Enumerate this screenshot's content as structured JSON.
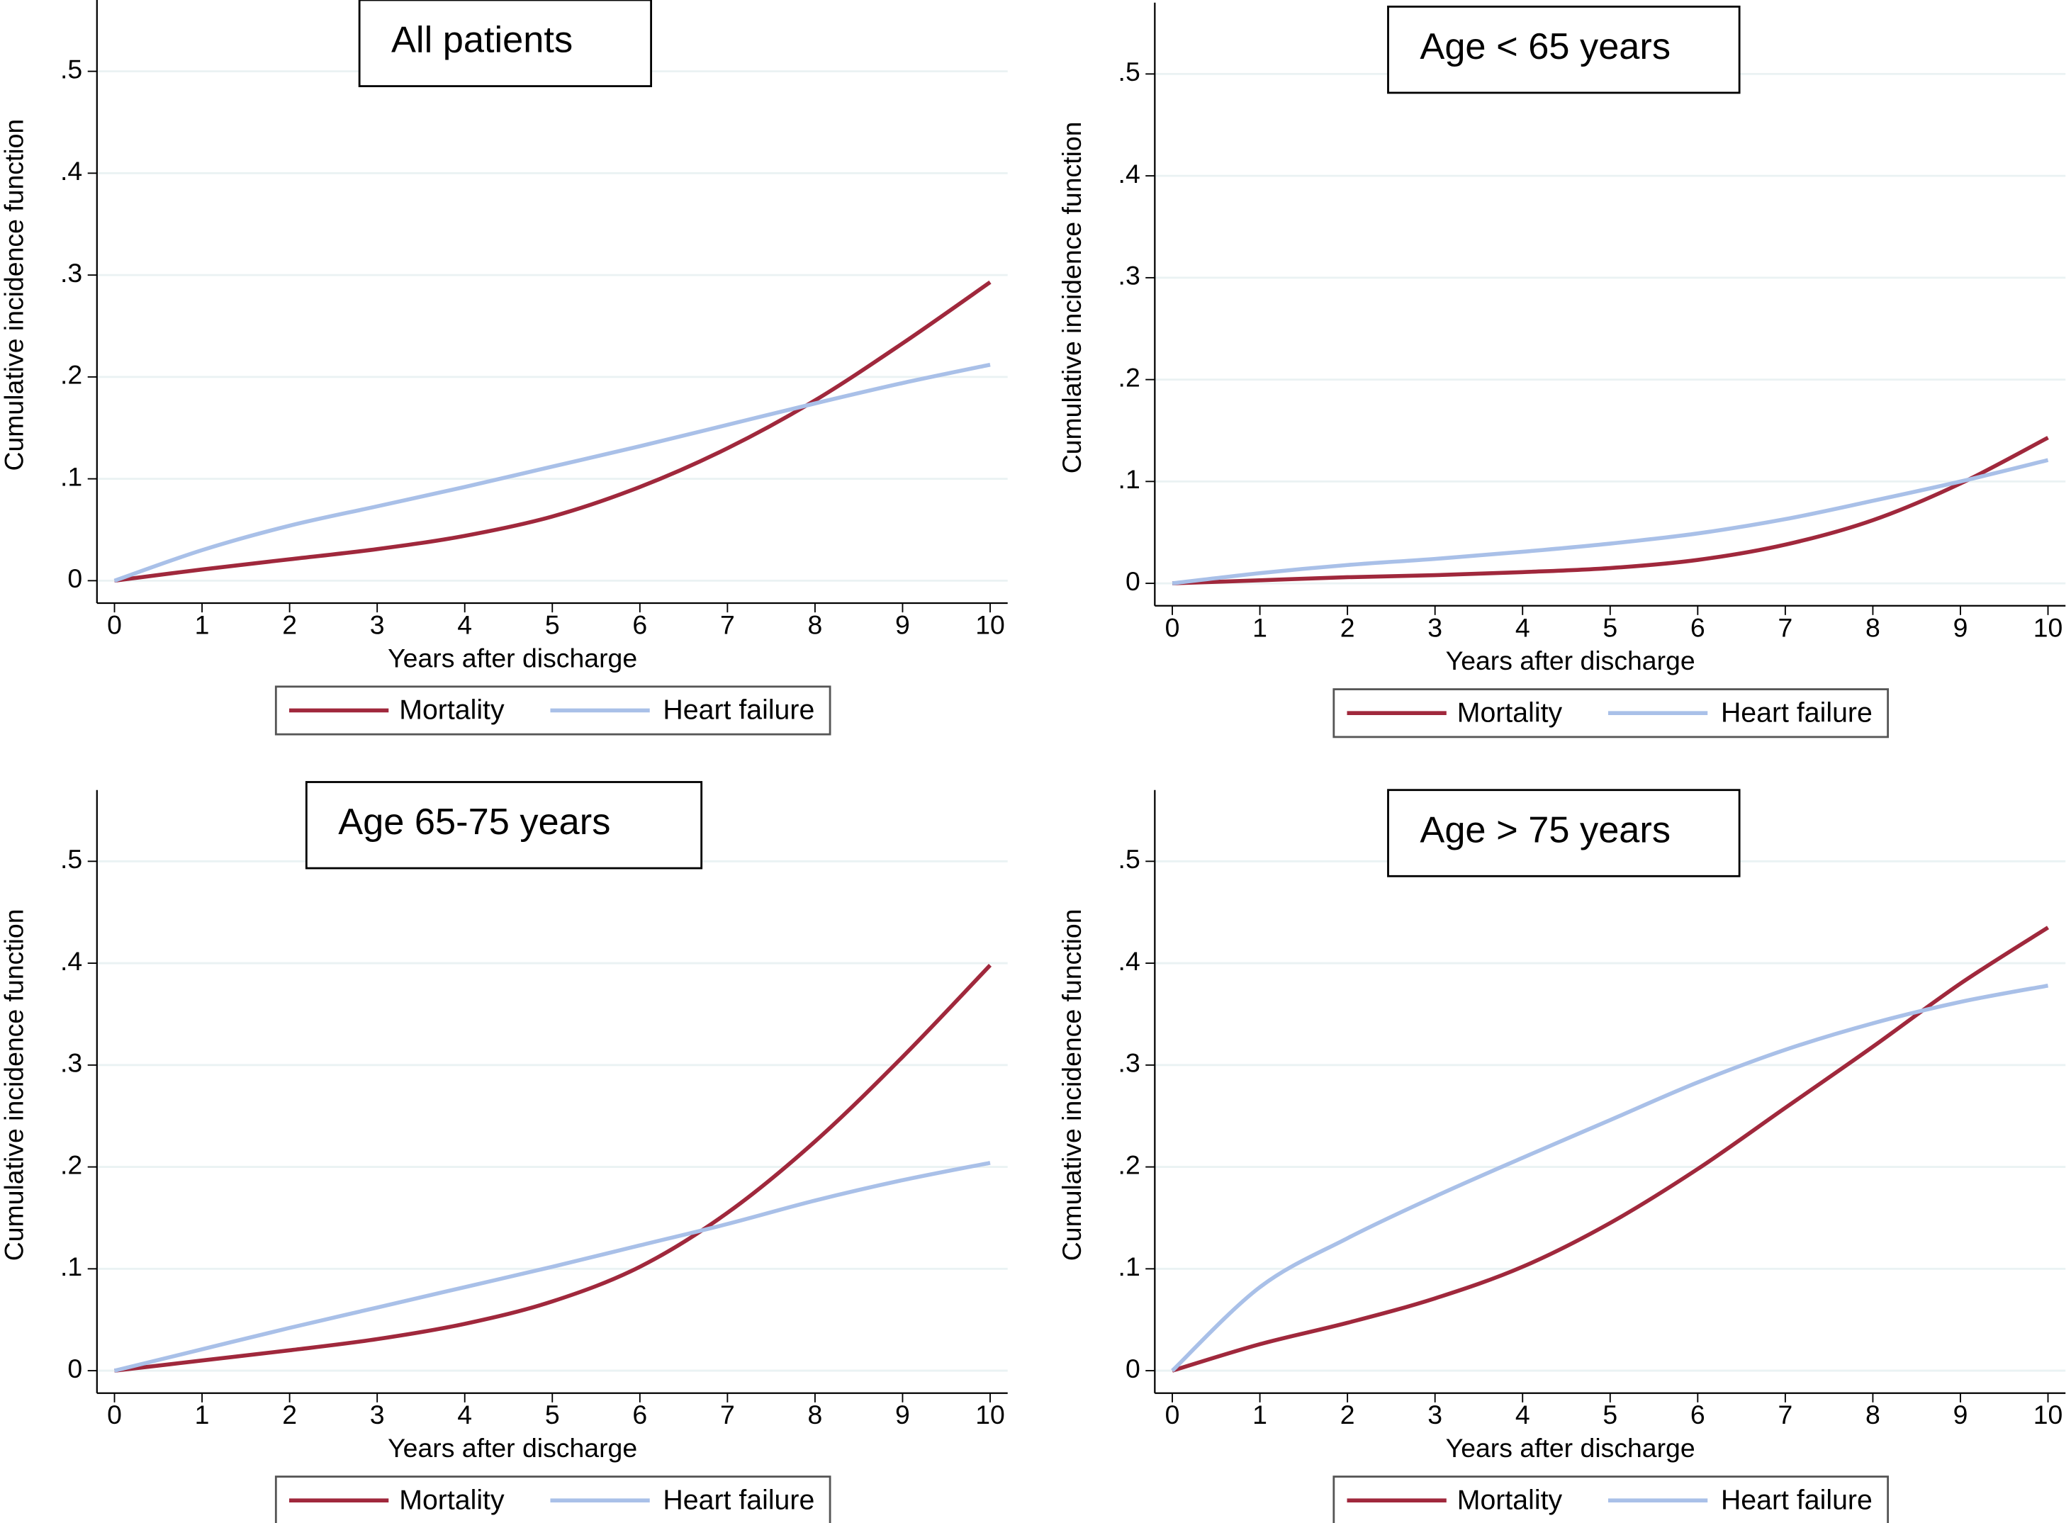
{
  "chart_data": [
    {
      "type": "line",
      "title": "All patients",
      "xlabel": "Years after discharge",
      "ylabel": "Cumulative incidence function",
      "x": [
        0,
        1,
        2,
        3,
        4,
        5,
        6,
        7,
        8,
        9,
        10
      ],
      "series": [
        {
          "name": "Mortality",
          "color": "#a0283c",
          "values": [
            0,
            0.011,
            0.021,
            0.031,
            0.044,
            0.063,
            0.092,
            0.13,
            0.177,
            0.233,
            0.293
          ]
        },
        {
          "name": "Heart failure",
          "color": "#a9c0e8",
          "values": [
            0,
            0.03,
            0.054,
            0.073,
            0.092,
            0.112,
            0.132,
            0.153,
            0.174,
            0.194,
            0.212
          ]
        }
      ],
      "xlim": [
        -0.2,
        10.2
      ],
      "ylim": [
        -0.022,
        0.57
      ],
      "xticks": [
        0,
        1,
        2,
        3,
        4,
        5,
        6,
        7,
        8,
        9,
        10
      ],
      "yticks": [
        0,
        {
          "value": 0.1,
          "label": ".1"
        },
        {
          "value": 0.2,
          "label": ".2"
        },
        {
          "value": 0.3,
          "label": ".3"
        },
        {
          "value": 0.4,
          "label": ".4"
        },
        {
          "value": 0.5,
          "label": ".5"
        }
      ],
      "grid": true,
      "legend": "bottom"
    },
    {
      "type": "line",
      "title": "Age < 65 years",
      "xlabel": "Years after discharge",
      "ylabel": "Cumulative incidence function",
      "x": [
        0,
        1,
        2,
        3,
        4,
        5,
        6,
        7,
        8,
        9,
        10
      ],
      "series": [
        {
          "name": "Mortality",
          "color": "#a0283c",
          "values": [
            0,
            0.003,
            0.006,
            0.008,
            0.011,
            0.015,
            0.023,
            0.038,
            0.062,
            0.098,
            0.143
          ]
        },
        {
          "name": "Heart failure",
          "color": "#a9c0e8",
          "values": [
            0,
            0.01,
            0.018,
            0.024,
            0.031,
            0.039,
            0.049,
            0.063,
            0.081,
            0.1,
            0.121
          ]
        }
      ],
      "xlim": [
        -0.2,
        10.2
      ],
      "ylim": [
        -0.022,
        0.57
      ],
      "xticks": [
        0,
        1,
        2,
        3,
        4,
        5,
        6,
        7,
        8,
        9,
        10
      ],
      "yticks": [
        0,
        {
          "value": 0.1,
          "label": ".1"
        },
        {
          "value": 0.2,
          "label": ".2"
        },
        {
          "value": 0.3,
          "label": ".3"
        },
        {
          "value": 0.4,
          "label": ".4"
        },
        {
          "value": 0.5,
          "label": ".5"
        }
      ],
      "grid": true,
      "legend": "bottom"
    },
    {
      "type": "line",
      "title": "Age 65-75 years",
      "xlabel": "Years after discharge",
      "ylabel": "Cumulative incidence function",
      "x": [
        0,
        1,
        2,
        3,
        4,
        5,
        6,
        7,
        8,
        9,
        10
      ],
      "series": [
        {
          "name": "Mortality",
          "color": "#a0283c",
          "values": [
            0,
            0.01,
            0.02,
            0.031,
            0.046,
            0.068,
            0.102,
            0.155,
            0.225,
            0.308,
            0.398
          ]
        },
        {
          "name": "Heart failure",
          "color": "#a9c0e8",
          "values": [
            0,
            0.021,
            0.042,
            0.062,
            0.082,
            0.102,
            0.123,
            0.144,
            0.167,
            0.187,
            0.204
          ]
        }
      ],
      "xlim": [
        -0.2,
        10.2
      ],
      "ylim": [
        -0.022,
        0.57
      ],
      "xticks": [
        0,
        1,
        2,
        3,
        4,
        5,
        6,
        7,
        8,
        9,
        10
      ],
      "yticks": [
        0,
        {
          "value": 0.1,
          "label": ".1"
        },
        {
          "value": 0.2,
          "label": ".2"
        },
        {
          "value": 0.3,
          "label": ".3"
        },
        {
          "value": 0.4,
          "label": ".4"
        },
        {
          "value": 0.5,
          "label": ".5"
        }
      ],
      "grid": true,
      "legend": "bottom"
    },
    {
      "type": "line",
      "title": "Age > 75 years",
      "xlabel": "Years after discharge",
      "ylabel": "Cumulative incidence function",
      "x": [
        0,
        1,
        2,
        3,
        4,
        5,
        6,
        7,
        8,
        9,
        10
      ],
      "series": [
        {
          "name": "Mortality",
          "color": "#a0283c",
          "values": [
            0,
            0.026,
            0.047,
            0.071,
            0.102,
            0.145,
            0.198,
            0.258,
            0.318,
            0.38,
            0.435
          ]
        },
        {
          "name": "Heart failure",
          "color": "#a9c0e8",
          "values": [
            0,
            0.082,
            0.13,
            0.171,
            0.209,
            0.246,
            0.283,
            0.315,
            0.341,
            0.362,
            0.378
          ]
        }
      ],
      "xlim": [
        -0.2,
        10.2
      ],
      "ylim": [
        -0.022,
        0.57
      ],
      "xticks": [
        0,
        1,
        2,
        3,
        4,
        5,
        6,
        7,
        8,
        9,
        10
      ],
      "yticks": [
        0,
        {
          "value": 0.1,
          "label": ".1"
        },
        {
          "value": 0.2,
          "label": ".2"
        },
        {
          "value": 0.3,
          "label": ".3"
        },
        {
          "value": 0.4,
          "label": ".4"
        },
        {
          "value": 0.5,
          "label": ".5"
        }
      ],
      "grid": true,
      "legend": "bottom"
    }
  ]
}
